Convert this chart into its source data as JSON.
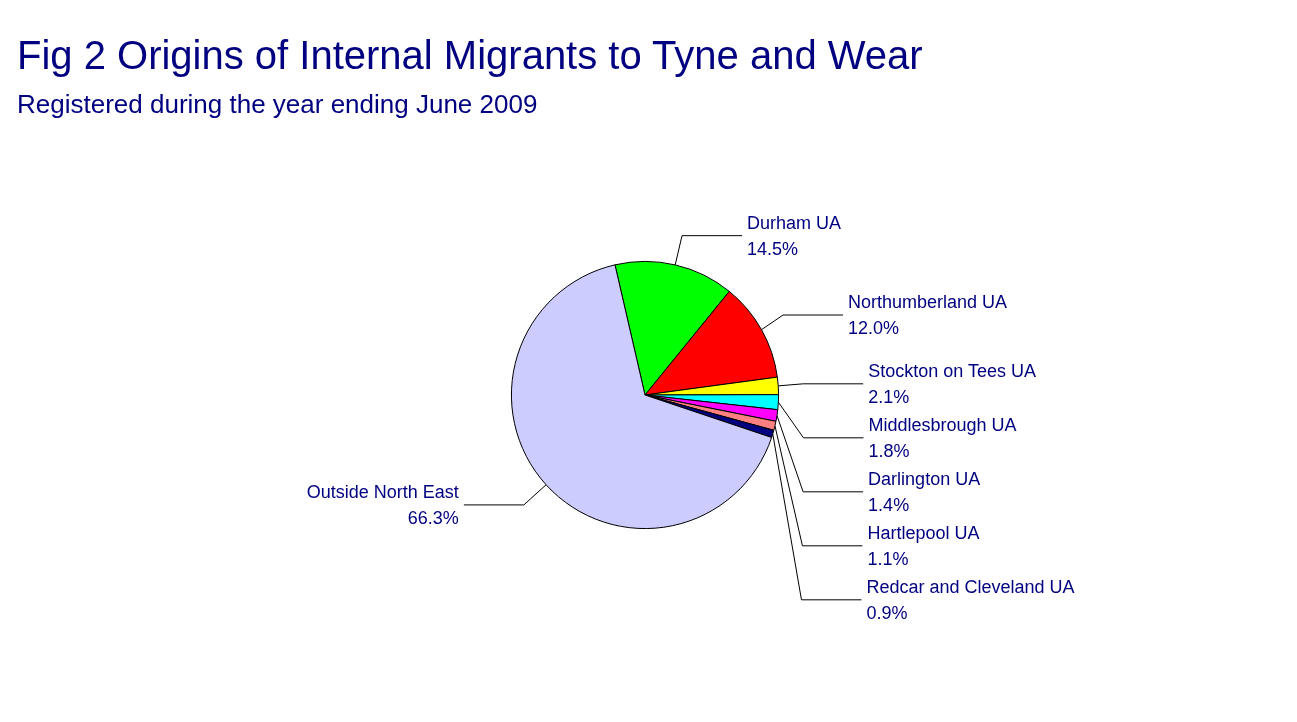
{
  "chart_data": {
    "type": "pie",
    "title": "Fig 2 Origins of Internal Migrants to Tyne and Wear",
    "subtitle": "Registered during the year ending June 2009",
    "categories": [
      "Durham UA",
      "Northumberland UA",
      "Stockton on Tees UA",
      "Middlesbrough UA",
      "Darlington UA",
      "Hartlepool UA",
      "Redcar and Cleveland UA",
      "Outside North East"
    ],
    "values": [
      14.5,
      12.0,
      2.1,
      1.8,
      1.4,
      1.1,
      0.9,
      66.3
    ],
    "colors": [
      "#00ff00",
      "#ff0000",
      "#ffff00",
      "#00ffff",
      "#ff00ff",
      "#ff8080",
      "#000080",
      "#ccccff"
    ],
    "value_labels": [
      "14.5%",
      "12.0%",
      "2.1%",
      "1.8%",
      "1.4%",
      "1.1%",
      "0.9%",
      "66.3%"
    ],
    "legend": false
  }
}
